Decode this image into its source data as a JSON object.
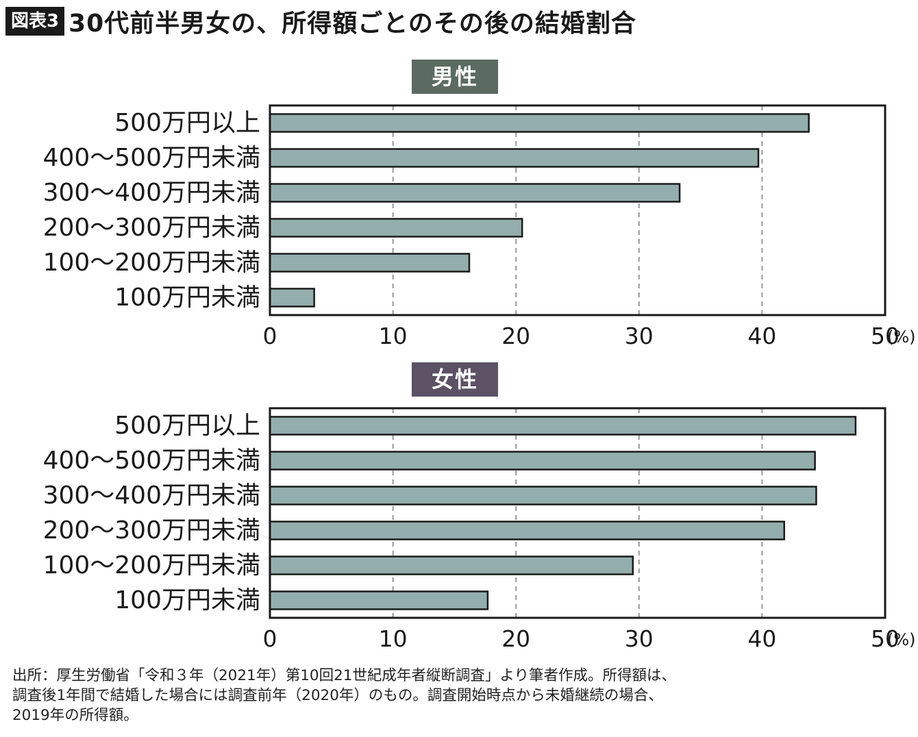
{
  "figure_label": "図表3",
  "title": "30代前半男女の、所得額ごとのその後の結婚割合",
  "chart_data": [
    {
      "type": "bar",
      "orientation": "horizontal",
      "title": "男性",
      "categories": [
        "500万円以上",
        "400～500万円未満",
        "300～400万円未満",
        "200～300万円未満",
        "100～200万円未満",
        "100万円未満"
      ],
      "values": [
        43.8,
        39.7,
        33.3,
        20.5,
        16.2,
        3.6
      ],
      "xlim": [
        0,
        50
      ],
      "x_ticks": [
        "0",
        "10",
        "20",
        "30",
        "40",
        "50"
      ],
      "x_unit": "(%)",
      "grid": "vertical dashed",
      "title_color": "#5b6b62"
    },
    {
      "type": "bar",
      "orientation": "horizontal",
      "title": "女性",
      "categories": [
        "500万円以上",
        "400～500万円未満",
        "300～400万円未満",
        "200～300万円未満",
        "100～200万円未満",
        "100万円未満"
      ],
      "values": [
        47.6,
        44.3,
        44.4,
        41.8,
        29.5,
        17.7
      ],
      "xlim": [
        0,
        50
      ],
      "x_ticks": [
        "0",
        "10",
        "20",
        "30",
        "40",
        "50"
      ],
      "x_unit": "(%)",
      "grid": "vertical dashed",
      "title_color": "#5c5165"
    }
  ],
  "colors": {
    "bar_fill": "#93aeac",
    "bar_stroke": "#1a1a1a",
    "grid": "#999999"
  },
  "source_lines": [
    "出所：厚生労働省「令和３年（2021年）第10回21世紀成年者縦断調査」より筆者作成。所得額は、",
    "調査後1年間で結婚した場合には調査前年（2020年）のもの。調査開始時点から未婚継続の場合、",
    "2019年の所得額。"
  ]
}
